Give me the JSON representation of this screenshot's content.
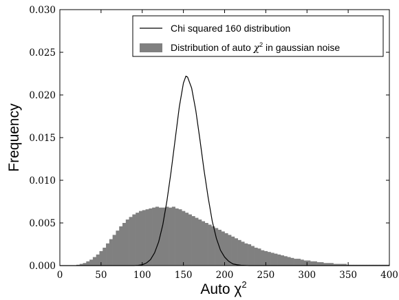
{
  "chart_data": {
    "type": "bar",
    "xlabel": "Auto χ",
    "xlabel_superscript": "2",
    "ylabel": "Frequency",
    "xlim": [
      0,
      400
    ],
    "ylim": [
      0,
      0.03
    ],
    "x_ticks": [
      0,
      50,
      100,
      150,
      200,
      250,
      300,
      350,
      400
    ],
    "y_ticks": [
      0.0,
      0.005,
      0.01,
      0.015,
      0.02,
      0.025,
      0.03
    ],
    "y_tick_labels": [
      "0.000",
      "0.005",
      "0.010",
      "0.015",
      "0.020",
      "0.025",
      "0.030"
    ],
    "grid": false,
    "legend_position": "top-right",
    "legend": [
      {
        "label": "Chi squared 160 distribution"
      },
      {
        "label_parts": [
          "Distribution of auto ",
          "χ",
          "2",
          " in gaussian noise"
        ]
      }
    ],
    "series": [
      {
        "label_ref": "legend.1",
        "kind": "histogram",
        "color": "#808080",
        "bin_width": 4,
        "bin_start": 20,
        "values": [
          0.0001,
          0.0002,
          0.0003,
          0.0005,
          0.0007,
          0.001,
          0.0013,
          0.0017,
          0.0021,
          0.0026,
          0.0031,
          0.0036,
          0.0041,
          0.0046,
          0.005,
          0.0054,
          0.0057,
          0.006,
          0.0062,
          0.0064,
          0.0065,
          0.0066,
          0.0067,
          0.0068,
          0.0069,
          0.0068,
          0.0068,
          0.0069,
          0.0068,
          0.0069,
          0.0067,
          0.0066,
          0.0064,
          0.0062,
          0.006,
          0.0058,
          0.0056,
          0.0054,
          0.0052,
          0.005,
          0.0048,
          0.0046,
          0.0044,
          0.0042,
          0.004,
          0.0038,
          0.0036,
          0.0034,
          0.0032,
          0.003,
          0.0028,
          0.0026,
          0.0025,
          0.0023,
          0.0021,
          0.002,
          0.0018,
          0.0017,
          0.0016,
          0.0015,
          0.0014,
          0.0013,
          0.0012,
          0.0011,
          0.001,
          0.0009,
          0.0008,
          0.0008,
          0.0007,
          0.0006,
          0.0006,
          0.0005,
          0.0005,
          0.0004,
          0.0004,
          0.0003,
          0.0003,
          0.0003,
          0.0002,
          0.0002,
          0.0002,
          0.0002,
          0.0001,
          0.0001,
          0.0001,
          0.0001,
          0.0001,
          0.0001,
          0.0001,
          0.0001,
          0.0001,
          0.0001,
          0.0001,
          0.0001,
          0.0001
        ]
      },
      {
        "label_ref": "legend.0",
        "kind": "line",
        "color": "#000000",
        "x": [
          0,
          90,
          95,
          100,
          105,
          110,
          115,
          120,
          125,
          130,
          135,
          140,
          145,
          150,
          153,
          155,
          160,
          165,
          170,
          175,
          180,
          185,
          190,
          195,
          200,
          205,
          210,
          215,
          220,
          230,
          240,
          260,
          300,
          400
        ],
        "y": [
          0,
          0,
          3e-05,
          0.0001,
          0.0003,
          0.0007,
          0.0015,
          0.0028,
          0.0048,
          0.0076,
          0.011,
          0.0148,
          0.0186,
          0.0214,
          0.0222,
          0.0221,
          0.0208,
          0.0182,
          0.0148,
          0.0112,
          0.008,
          0.0052,
          0.0032,
          0.0018,
          0.001,
          0.0005,
          0.0002,
          0.0001,
          4e-05,
          0,
          0,
          0,
          0,
          0
        ]
      }
    ]
  }
}
